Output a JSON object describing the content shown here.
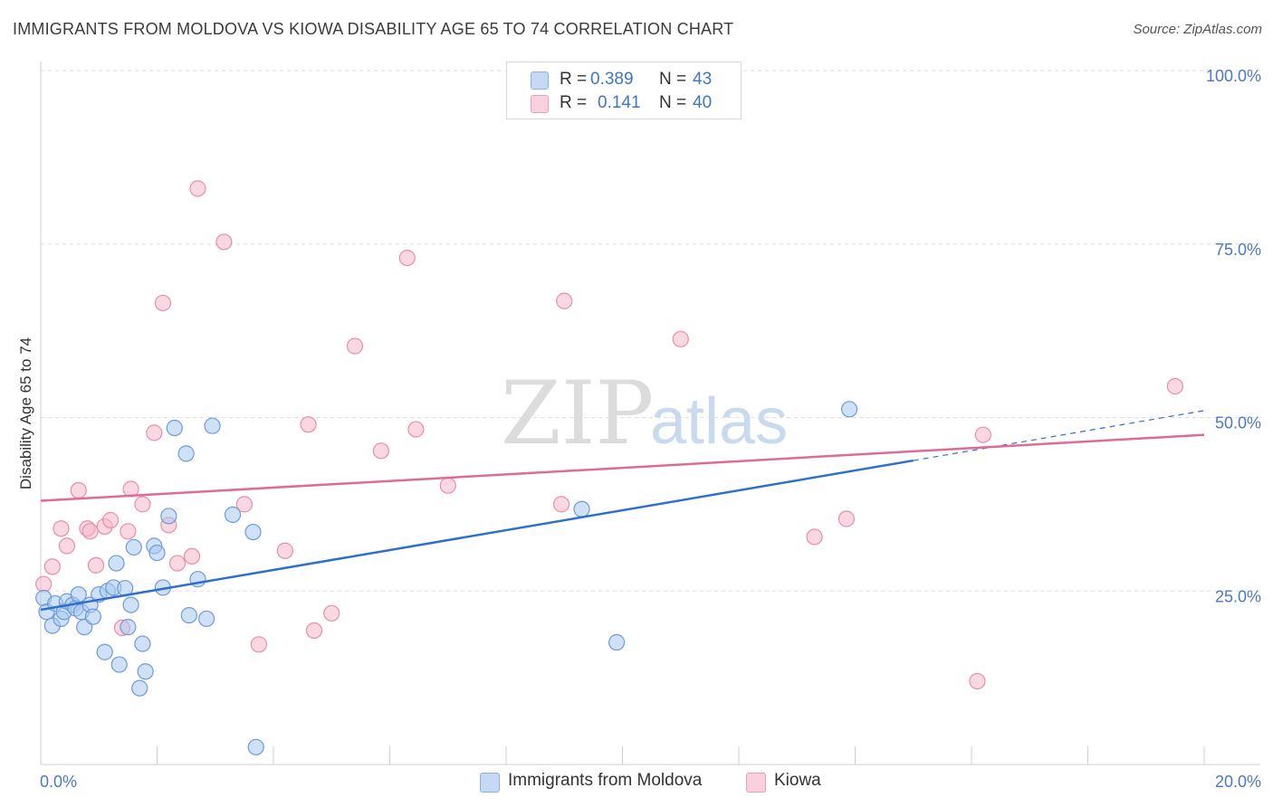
{
  "title": "IMMIGRANTS FROM MOLDOVA VS KIOWA DISABILITY AGE 65 TO 74 CORRELATION CHART",
  "source": "Source: ZipAtlas.com",
  "watermark": {
    "zip": "ZIP",
    "atlas": "atlas"
  },
  "legend_top": {
    "rows": [
      {
        "r_label": "R =",
        "r_value": "0.389",
        "n_label": "N =",
        "n_value": "43"
      },
      {
        "r_label": "R =",
        "r_value": "0.141",
        "n_label": "N =",
        "n_value": "40"
      }
    ]
  },
  "legend_bottom": {
    "series1": "Immigrants from Moldova",
    "series2": "Kiowa"
  },
  "colors": {
    "blue_fill": "#a8c8f0",
    "blue_stroke": "#6e9bd8",
    "blue_line": "#2e6fce",
    "pink_fill": "#f6b8cb",
    "pink_stroke": "#e88ea9",
    "pink_line": "#e06a96",
    "tick": "#4a78c8"
  },
  "chart_data": {
    "type": "scatter",
    "title": "IMMIGRANTS FROM MOLDOVA VS KIOWA DISABILITY AGE 65 TO 74 CORRELATION CHART",
    "xlabel": "",
    "ylabel": "Disability Age 65 to 74",
    "xlim": [
      0,
      20
    ],
    "ylim": [
      0,
      105
    ],
    "x_tick_labels": [
      {
        "value": 0,
        "label": "0.0%"
      },
      {
        "value": 20,
        "label": "20.0%"
      }
    ],
    "y_tick_labels": [
      {
        "value": 25,
        "label": "25.0%"
      },
      {
        "value": 50,
        "label": "50.0%"
      },
      {
        "value": 75,
        "label": "75.0%"
      },
      {
        "value": 100,
        "label": "100.0%"
      }
    ],
    "series": [
      {
        "name": "Immigrants from Moldova",
        "R": 0.389,
        "N": 43,
        "trend": {
          "x0": 0,
          "y0": 22.3,
          "x1": 15.0,
          "y1": 43.8,
          "dash_x1": 20,
          "dash_y1": 51.0
        },
        "points": [
          [
            0.05,
            24.0
          ],
          [
            0.1,
            22.0
          ],
          [
            0.2,
            20.0
          ],
          [
            0.25,
            23.2
          ],
          [
            0.35,
            21.0
          ],
          [
            0.4,
            22.0
          ],
          [
            0.45,
            23.5
          ],
          [
            0.55,
            23.0
          ],
          [
            0.6,
            22.5
          ],
          [
            0.65,
            24.5
          ],
          [
            0.7,
            22.0
          ],
          [
            0.75,
            19.8
          ],
          [
            0.85,
            23.0
          ],
          [
            0.9,
            21.3
          ],
          [
            1.0,
            24.5
          ],
          [
            1.1,
            16.2
          ],
          [
            1.15,
            25.0
          ],
          [
            1.25,
            25.5
          ],
          [
            1.3,
            29.0
          ],
          [
            1.35,
            14.4
          ],
          [
            1.45,
            25.4
          ],
          [
            1.5,
            19.8
          ],
          [
            1.55,
            23.0
          ],
          [
            1.6,
            31.3
          ],
          [
            1.7,
            11.0
          ],
          [
            1.75,
            17.4
          ],
          [
            1.8,
            13.4
          ],
          [
            1.95,
            31.5
          ],
          [
            2.0,
            30.5
          ],
          [
            2.1,
            25.5
          ],
          [
            2.2,
            35.8
          ],
          [
            2.3,
            48.5
          ],
          [
            2.5,
            44.8
          ],
          [
            2.55,
            21.5
          ],
          [
            2.7,
            26.7
          ],
          [
            2.85,
            21.0
          ],
          [
            2.95,
            48.8
          ],
          [
            3.3,
            36.0
          ],
          [
            3.65,
            33.5
          ],
          [
            3.7,
            2.5
          ],
          [
            9.3,
            36.8
          ],
          [
            9.9,
            17.6
          ],
          [
            13.9,
            51.2
          ]
        ]
      },
      {
        "name": "Kiowa",
        "R": 0.141,
        "N": 40,
        "trend": {
          "x0": 0,
          "y0": 38.0,
          "x1": 20,
          "y1": 47.5
        },
        "points": [
          [
            0.05,
            26.0
          ],
          [
            0.2,
            28.5
          ],
          [
            0.35,
            34.0
          ],
          [
            0.45,
            31.5
          ],
          [
            0.65,
            39.5
          ],
          [
            0.8,
            34.0
          ],
          [
            0.85,
            33.6
          ],
          [
            0.95,
            28.7
          ],
          [
            1.1,
            34.3
          ],
          [
            1.2,
            35.2
          ],
          [
            1.4,
            19.7
          ],
          [
            1.5,
            33.6
          ],
          [
            1.55,
            39.7
          ],
          [
            1.75,
            37.5
          ],
          [
            1.95,
            47.8
          ],
          [
            2.1,
            66.5
          ],
          [
            2.2,
            34.5
          ],
          [
            2.35,
            29.0
          ],
          [
            2.6,
            30.0
          ],
          [
            2.7,
            83.0
          ],
          [
            3.15,
            75.3
          ],
          [
            3.5,
            37.5
          ],
          [
            3.75,
            17.3
          ],
          [
            4.2,
            30.8
          ],
          [
            4.6,
            49.0
          ],
          [
            4.7,
            19.3
          ],
          [
            5.0,
            21.8
          ],
          [
            5.4,
            60.3
          ],
          [
            5.85,
            45.2
          ],
          [
            6.3,
            73.0
          ],
          [
            6.45,
            48.3
          ],
          [
            7.0,
            40.2
          ],
          [
            8.95,
            37.5
          ],
          [
            9.0,
            66.8
          ],
          [
            11.0,
            61.3
          ],
          [
            13.3,
            32.8
          ],
          [
            13.85,
            35.4
          ],
          [
            16.1,
            12.0
          ],
          [
            16.2,
            47.5
          ],
          [
            19.5,
            54.5
          ]
        ]
      }
    ]
  }
}
